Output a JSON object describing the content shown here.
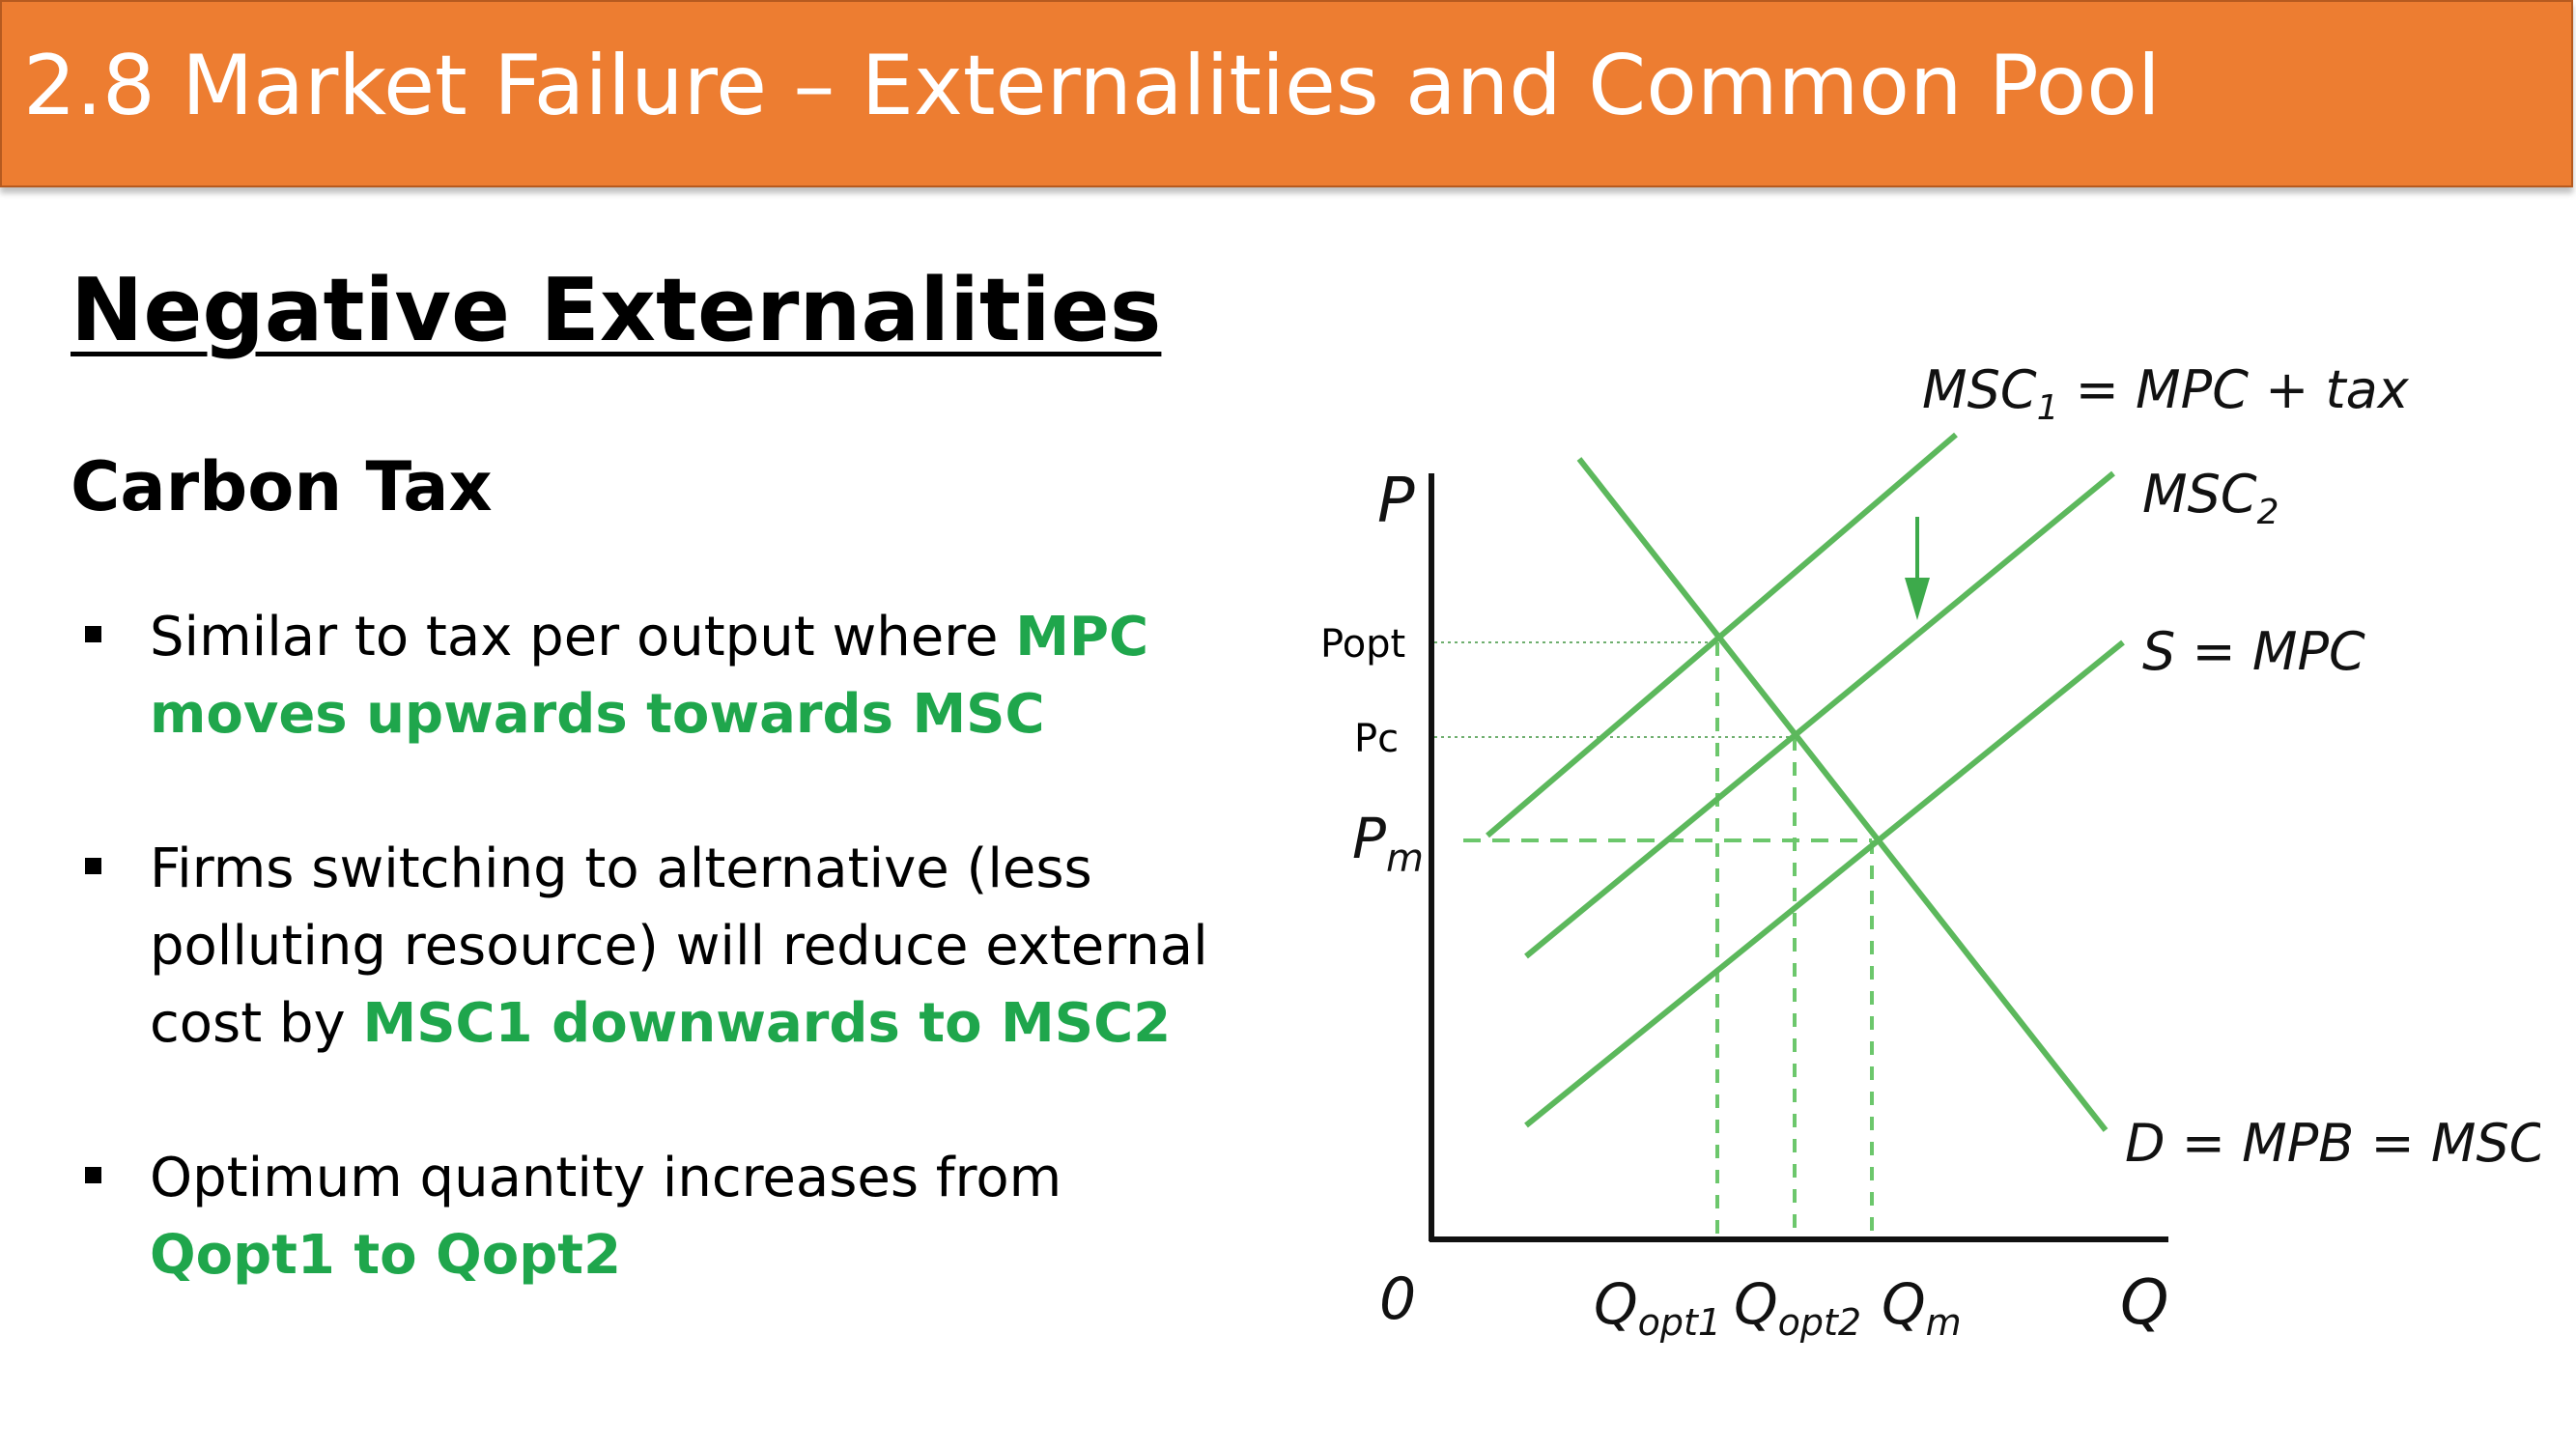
{
  "header": {
    "title": "2.8 Market Failure – Externalities and Common Pool"
  },
  "content": {
    "heading": "Negative Externalities",
    "subheading": "Carbon Tax",
    "bullets": [
      {
        "text_a": "Similar to tax per output where ",
        "highlight": "MPC moves upwards towards MSC",
        "text_b": ""
      },
      {
        "text_a": "Firms switching to alternative (less polluting resource) will reduce external cost by ",
        "highlight": "MSC1 downwards to MSC2",
        "text_b": ""
      },
      {
        "text_a": "Optimum quantity increases from ",
        "highlight": "Qopt1 to Qopt2",
        "text_b": ""
      }
    ]
  },
  "diagram": {
    "axes": {
      "y_label": "P",
      "x_label": "Q",
      "origin": "0"
    },
    "price_labels": {
      "popt": "Popt",
      "pc": "Pc",
      "pm": "P",
      "pm_sub": "m"
    },
    "quantity_labels": {
      "qopt1": "Q",
      "qopt1_sub": "opt1",
      "qopt2": "Q",
      "qopt2_sub": "opt2",
      "qm": "Q",
      "qm_sub": "m"
    },
    "curve_labels": {
      "msc1_a": "MSC",
      "msc1_sub": "1",
      "msc1_b": " = MPC + tax",
      "msc2": "MSC",
      "msc2_sub": "2",
      "supply": "S = MPC",
      "demand": "D = MPB = MSC"
    },
    "colors": {
      "curve": "#5CB85C",
      "arrow": "#3DAA4B",
      "guide_dashed": "#6CC76C",
      "guide_dotted": "#6FAF6F",
      "highlight_text": "#1FA64C"
    }
  }
}
